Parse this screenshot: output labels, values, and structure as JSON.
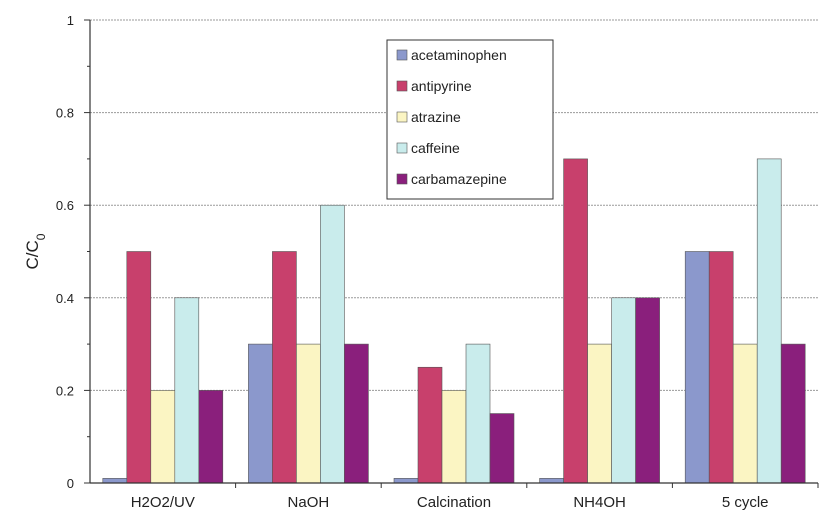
{
  "chart_data": {
    "type": "bar",
    "categories": [
      "H2O2/UV",
      "NaOH",
      "Calcination",
      "NH4OH",
      "5 cycle"
    ],
    "series": [
      {
        "name": "acetaminophen",
        "color": "#8b98cc",
        "values": [
          0.01,
          0.3,
          0.01,
          0.01,
          0.5
        ]
      },
      {
        "name": "antipyrine",
        "color": "#c8406c",
        "values": [
          0.5,
          0.5,
          0.25,
          0.7,
          0.5
        ]
      },
      {
        "name": "atrazine",
        "color": "#fbf5c3",
        "values": [
          0.2,
          0.3,
          0.2,
          0.3,
          0.3
        ]
      },
      {
        "name": "caffeine",
        "color": "#c9ecec",
        "values": [
          0.4,
          0.6,
          0.3,
          0.4,
          0.7
        ]
      },
      {
        "name": "carbamazepine",
        "color": "#8a1f7c",
        "values": [
          0.2,
          0.3,
          0.15,
          0.4,
          0.3
        ]
      }
    ],
    "ylabel": "C/C",
    "ylabel_subscript": "0",
    "ylim": [
      0,
      1
    ],
    "yticks": [
      "0",
      "0.2",
      "0.4",
      "0.6",
      "0.8",
      "1"
    ],
    "grid": true,
    "legend_position": "top-center"
  }
}
